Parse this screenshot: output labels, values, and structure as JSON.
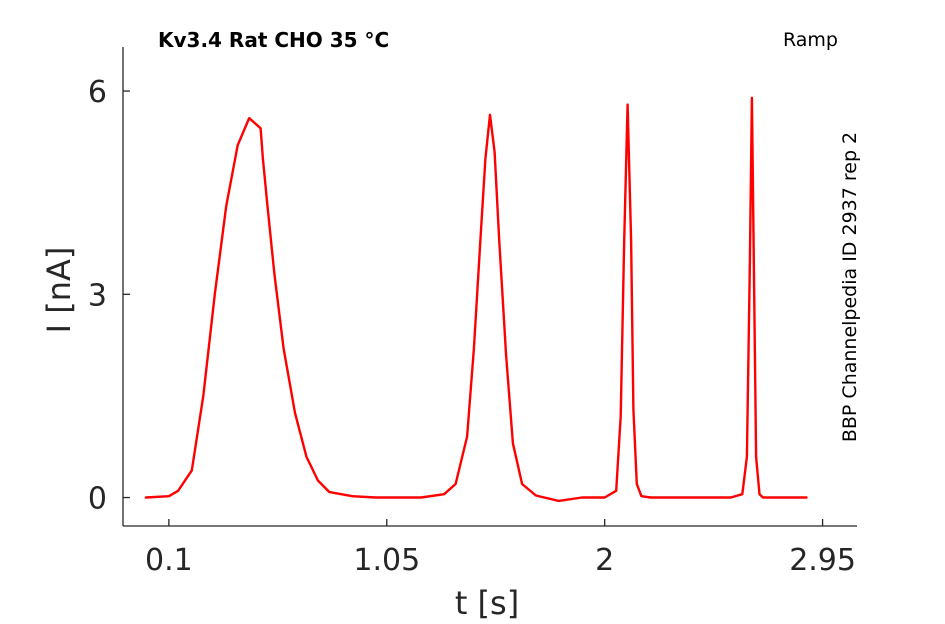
{
  "chart_data": {
    "type": "line",
    "title": "Kv3.4  Rat  CHO  35 °C",
    "protocol_label": "Ramp",
    "side_label": "BBP Channelpedia ID 2937 rep 2",
    "xlabel": "t [s]",
    "ylabel": "I [nA]",
    "xlim": [
      -0.1,
      3.1
    ],
    "ylim": [
      -0.42,
      6.65
    ],
    "xticks": [
      0.1,
      1.05,
      2,
      2.95
    ],
    "xtick_labels": [
      "0.1",
      "1.05",
      "2",
      "2.95"
    ],
    "yticks": [
      0,
      3,
      6
    ],
    "ytick_labels": [
      "0",
      "3",
      "6"
    ],
    "grid": false,
    "series": [
      {
        "color": "#ff0000",
        "x": [
          0,
          0.1,
          0.14,
          0.2,
          0.25,
          0.3,
          0.35,
          0.4,
          0.45,
          0.5,
          0.51,
          0.53,
          0.56,
          0.6,
          0.65,
          0.7,
          0.75,
          0.8,
          0.9,
          1.0,
          1.1,
          1.2,
          1.3,
          1.35,
          1.4,
          1.43,
          1.46,
          1.48,
          1.5,
          1.52,
          1.54,
          1.57,
          1.6,
          1.64,
          1.7,
          1.8,
          1.9,
          2.0,
          2.05,
          2.07,
          2.085,
          2.1,
          2.115,
          2.125,
          2.14,
          2.16,
          2.2,
          2.3,
          2.4,
          2.55,
          2.6,
          2.62,
          2.633,
          2.642,
          2.65,
          2.66,
          2.675,
          2.69,
          2.8,
          2.88
        ],
        "y": [
          0.0,
          0.02,
          0.1,
          0.4,
          1.5,
          3.0,
          4.3,
          5.2,
          5.6,
          5.45,
          5.0,
          4.3,
          3.3,
          2.2,
          1.25,
          0.6,
          0.25,
          0.08,
          0.02,
          0.0,
          0.0,
          0.0,
          0.05,
          0.2,
          0.9,
          2.2,
          3.9,
          5.0,
          5.65,
          5.1,
          3.8,
          2.1,
          0.8,
          0.2,
          0.03,
          -0.05,
          0.0,
          0.0,
          0.1,
          1.2,
          3.8,
          5.8,
          3.8,
          1.3,
          0.2,
          0.02,
          0.0,
          0.0,
          0.0,
          0.0,
          0.05,
          0.6,
          3.5,
          5.9,
          3.5,
          0.6,
          0.05,
          0.0,
          0.0,
          0.0
        ]
      }
    ]
  }
}
